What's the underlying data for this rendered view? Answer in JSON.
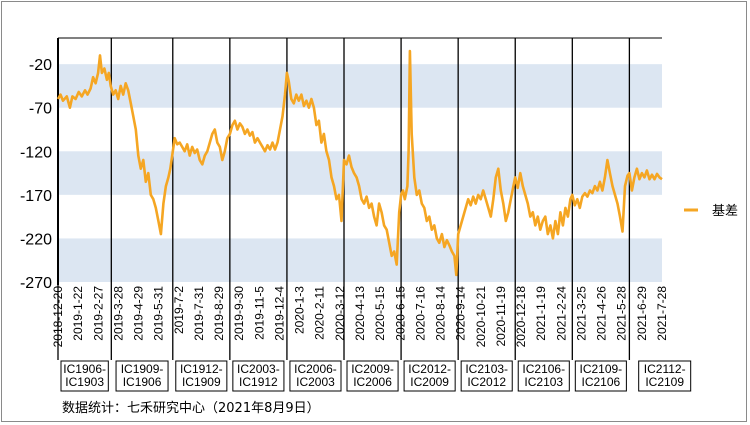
{
  "chart_data": {
    "type": "line",
    "title": "",
    "xlabel": "",
    "ylabel": "",
    "ylim": [
      -270,
      10
    ],
    "yticks": [
      -20,
      -70,
      -120,
      -170,
      -220,
      -270
    ],
    "shaded_bands": [
      [
        -70,
        -20
      ],
      [
        -170,
        -120
      ],
      [
        -270,
        -220
      ]
    ],
    "x_date_range": [
      "2018-12-20",
      "2021-8-9"
    ],
    "xticks": [
      "2018-12-20",
      "2019-1-22",
      "2019-2-27",
      "2019-3-28",
      "2019-4-29",
      "2019-5-31",
      "2019-7-2",
      "2019-7-31",
      "2019-8-29",
      "2019-9-30",
      "2019-11-5",
      "2019-12-4",
      "2020-1-3",
      "2020-2-11",
      "2020-3-12",
      "2020-4-13",
      "2020-5-15",
      "2020-6-15",
      "2020-7-16",
      "2020-8-14",
      "2020-9-14",
      "2020-10-21",
      "2020-11-19",
      "2020-12-18",
      "2021-1-19",
      "2021-2-24",
      "2021-3-25",
      "2021-4-26",
      "2021-5-28",
      "2021-6-29",
      "2021-7-28"
    ],
    "contract_dividers": [
      "2018-12-20",
      "2019-3-15",
      "2019-6-21",
      "2019-9-20",
      "2019-12-20",
      "2020-3-20",
      "2020-6-19",
      "2020-9-18",
      "2020-12-18",
      "2021-3-19",
      "2021-6-18"
    ],
    "contract_labels": [
      [
        "IC1906-",
        "IC1903"
      ],
      [
        "IC1909-",
        "IC1906"
      ],
      [
        "IC1912-",
        "IC1909"
      ],
      [
        "IC2003-",
        "IC1912"
      ],
      [
        "IC2006-",
        "IC2003"
      ],
      [
        "IC2009-",
        "IC2006"
      ],
      [
        "IC2012-",
        "IC2009"
      ],
      [
        "IC2103-",
        "IC2012"
      ],
      [
        "IC2106-",
        "IC2103"
      ],
      [
        "IC2109-",
        "IC2106"
      ],
      [
        "IC2112-",
        "IC2109"
      ]
    ],
    "legend_position": "right",
    "series": [
      {
        "name": "基差",
        "color": "#F5A623",
        "points": [
          [
            "2018-12-20",
            -60
          ],
          [
            "2018-12-24",
            -55
          ],
          [
            "2018-12-28",
            -62
          ],
          [
            "2019-1-3",
            -57
          ],
          [
            "2019-1-8",
            -70
          ],
          [
            "2019-1-12",
            -57
          ],
          [
            "2019-1-17",
            -60
          ],
          [
            "2019-1-22",
            -52
          ],
          [
            "2019-1-27",
            -57
          ],
          [
            "2019-2-1",
            -50
          ],
          [
            "2019-2-5",
            -55
          ],
          [
            "2019-2-10",
            -48
          ],
          [
            "2019-2-14",
            -35
          ],
          [
            "2019-2-18",
            -42
          ],
          [
            "2019-2-22",
            -30
          ],
          [
            "2019-2-25",
            -10
          ],
          [
            "2019-2-28",
            -30
          ],
          [
            "2019-3-4",
            -25
          ],
          [
            "2019-3-8",
            -38
          ],
          [
            "2019-3-11",
            -30
          ],
          [
            "2019-3-14",
            -45
          ],
          [
            "2019-3-18",
            -55
          ],
          [
            "2019-3-22",
            -50
          ],
          [
            "2019-3-26",
            -60
          ],
          [
            "2019-3-30",
            -45
          ],
          [
            "2019-4-3",
            -55
          ],
          [
            "2019-4-7",
            -42
          ],
          [
            "2019-4-11",
            -50
          ],
          [
            "2019-4-15",
            -65
          ],
          [
            "2019-4-19",
            -80
          ],
          [
            "2019-4-23",
            -95
          ],
          [
            "2019-4-27",
            -125
          ],
          [
            "2019-5-1",
            -140
          ],
          [
            "2019-5-5",
            -130
          ],
          [
            "2019-5-9",
            -155
          ],
          [
            "2019-5-13",
            -145
          ],
          [
            "2019-5-17",
            -170
          ],
          [
            "2019-5-21",
            -175
          ],
          [
            "2019-5-25",
            -185
          ],
          [
            "2019-5-29",
            -200
          ],
          [
            "2019-6-2",
            -215
          ],
          [
            "2019-6-6",
            -180
          ],
          [
            "2019-6-10",
            -160
          ],
          [
            "2019-6-14",
            -150
          ],
          [
            "2019-6-17",
            -140
          ],
          [
            "2019-6-20",
            -125
          ],
          [
            "2019-6-24",
            -105
          ],
          [
            "2019-6-28",
            -112
          ],
          [
            "2019-7-2",
            -110
          ],
          [
            "2019-7-6",
            -115
          ],
          [
            "2019-7-10",
            -120
          ],
          [
            "2019-7-14",
            -112
          ],
          [
            "2019-7-18",
            -125
          ],
          [
            "2019-7-22",
            -115
          ],
          [
            "2019-7-26",
            -122
          ],
          [
            "2019-7-30",
            -118
          ],
          [
            "2019-8-3",
            -130
          ],
          [
            "2019-8-7",
            -135
          ],
          [
            "2019-8-11",
            -125
          ],
          [
            "2019-8-15",
            -120
          ],
          [
            "2019-8-19",
            -110
          ],
          [
            "2019-8-23",
            -100
          ],
          [
            "2019-8-27",
            -95
          ],
          [
            "2019-8-31",
            -110
          ],
          [
            "2019-9-4",
            -115
          ],
          [
            "2019-9-8",
            -130
          ],
          [
            "2019-9-12",
            -120
          ],
          [
            "2019-9-16",
            -105
          ],
          [
            "2019-9-20",
            -100
          ],
          [
            "2019-9-24",
            -90
          ],
          [
            "2019-9-28",
            -85
          ],
          [
            "2019-10-2",
            -95
          ],
          [
            "2019-10-6",
            -88
          ],
          [
            "2019-10-10",
            -92
          ],
          [
            "2019-10-14",
            -100
          ],
          [
            "2019-10-18",
            -95
          ],
          [
            "2019-10-22",
            -102
          ],
          [
            "2019-10-26",
            -98
          ],
          [
            "2019-10-30",
            -110
          ],
          [
            "2019-11-3",
            -105
          ],
          [
            "2019-11-7",
            -110
          ],
          [
            "2019-11-11",
            -115
          ],
          [
            "2019-11-15",
            -120
          ],
          [
            "2019-11-19",
            -113
          ],
          [
            "2019-11-23",
            -118
          ],
          [
            "2019-11-27",
            -110
          ],
          [
            "2019-12-1",
            -118
          ],
          [
            "2019-12-5",
            -110
          ],
          [
            "2019-12-9",
            -95
          ],
          [
            "2019-12-13",
            -80
          ],
          [
            "2019-12-17",
            -55
          ],
          [
            "2019-12-20",
            -30
          ],
          [
            "2019-12-23",
            -40
          ],
          [
            "2019-12-27",
            -60
          ],
          [
            "2019-12-31",
            -65
          ],
          [
            "2020-1-4",
            -55
          ],
          [
            "2020-1-8",
            -62
          ],
          [
            "2020-1-12",
            -55
          ],
          [
            "2020-1-16",
            -68
          ],
          [
            "2020-1-20",
            -62
          ],
          [
            "2020-1-24",
            -70
          ],
          [
            "2020-1-28",
            -60
          ],
          [
            "2020-2-1",
            -70
          ],
          [
            "2020-2-5",
            -90
          ],
          [
            "2020-2-9",
            -85
          ],
          [
            "2020-2-13",
            -110
          ],
          [
            "2020-2-17",
            -100
          ],
          [
            "2020-2-21",
            -120
          ],
          [
            "2020-2-25",
            -130
          ],
          [
            "2020-2-29",
            -150
          ],
          [
            "2020-3-4",
            -160
          ],
          [
            "2020-3-8",
            -175
          ],
          [
            "2020-3-12",
            -170
          ],
          [
            "2020-3-16",
            -200
          ],
          [
            "2020-3-20",
            -130
          ],
          [
            "2020-3-24",
            -135
          ],
          [
            "2020-3-28",
            -125
          ],
          [
            "2020-4-1",
            -138
          ],
          [
            "2020-4-5",
            -145
          ],
          [
            "2020-4-9",
            -150
          ],
          [
            "2020-4-13",
            -160
          ],
          [
            "2020-4-17",
            -175
          ],
          [
            "2020-4-21",
            -180
          ],
          [
            "2020-4-25",
            -172
          ],
          [
            "2020-4-29",
            -185
          ],
          [
            "2020-5-3",
            -180
          ],
          [
            "2020-5-7",
            -195
          ],
          [
            "2020-5-11",
            -205
          ],
          [
            "2020-5-15",
            -180
          ],
          [
            "2020-5-19",
            -190
          ],
          [
            "2020-5-23",
            -205
          ],
          [
            "2020-5-27",
            -210
          ],
          [
            "2020-5-31",
            -225
          ],
          [
            "2020-6-4",
            -240
          ],
          [
            "2020-6-8",
            -235
          ],
          [
            "2020-6-12",
            -250
          ],
          [
            "2020-6-16",
            -190
          ],
          [
            "2020-6-19",
            -170
          ],
          [
            "2020-6-22",
            -165
          ],
          [
            "2020-6-25",
            -175
          ],
          [
            "2020-6-29",
            -160
          ],
          [
            "2020-7-1",
            -120
          ],
          [
            "2020-7-3",
            -5
          ],
          [
            "2020-7-6",
            -100
          ],
          [
            "2020-7-10",
            -150
          ],
          [
            "2020-7-14",
            -170
          ],
          [
            "2020-7-18",
            -165
          ],
          [
            "2020-7-22",
            -180
          ],
          [
            "2020-7-26",
            -185
          ],
          [
            "2020-7-30",
            -200
          ],
          [
            "2020-8-3",
            -195
          ],
          [
            "2020-8-7",
            -210
          ],
          [
            "2020-8-11",
            -205
          ],
          [
            "2020-8-15",
            -220
          ],
          [
            "2020-8-19",
            -225
          ],
          [
            "2020-8-23",
            -215
          ],
          [
            "2020-8-27",
            -230
          ],
          [
            "2020-8-31",
            -222
          ],
          [
            "2020-9-4",
            -228
          ],
          [
            "2020-9-8",
            -235
          ],
          [
            "2020-9-12",
            -240
          ],
          [
            "2020-9-15",
            -262
          ],
          [
            "2020-9-18",
            -215
          ],
          [
            "2020-9-22",
            -205
          ],
          [
            "2020-9-26",
            -195
          ],
          [
            "2020-9-30",
            -185
          ],
          [
            "2020-10-4",
            -175
          ],
          [
            "2020-10-8",
            -182
          ],
          [
            "2020-10-12",
            -172
          ],
          [
            "2020-10-16",
            -180
          ],
          [
            "2020-10-20",
            -170
          ],
          [
            "2020-10-24",
            -175
          ],
          [
            "2020-10-28",
            -165
          ],
          [
            "2020-11-1",
            -175
          ],
          [
            "2020-11-5",
            -185
          ],
          [
            "2020-11-9",
            -195
          ],
          [
            "2020-11-13",
            -175
          ],
          [
            "2020-11-17",
            -150
          ],
          [
            "2020-11-21",
            -140
          ],
          [
            "2020-11-25",
            -165
          ],
          [
            "2020-11-29",
            -180
          ],
          [
            "2020-12-3",
            -200
          ],
          [
            "2020-12-7",
            -190
          ],
          [
            "2020-12-11",
            -175
          ],
          [
            "2020-12-15",
            -160
          ],
          [
            "2020-12-18",
            -150
          ],
          [
            "2020-12-22",
            -162
          ],
          [
            "2020-12-26",
            -145
          ],
          [
            "2020-12-30",
            -160
          ],
          [
            "2021-1-3",
            -170
          ],
          [
            "2021-1-7",
            -180
          ],
          [
            "2021-1-11",
            -195
          ],
          [
            "2021-1-15",
            -190
          ],
          [
            "2021-1-19",
            -205
          ],
          [
            "2021-1-23",
            -195
          ],
          [
            "2021-1-27",
            -210
          ],
          [
            "2021-1-31",
            -200
          ],
          [
            "2021-2-4",
            -195
          ],
          [
            "2021-2-8",
            -215
          ],
          [
            "2021-2-12",
            -205
          ],
          [
            "2021-2-16",
            -220
          ],
          [
            "2021-2-20",
            -200
          ],
          [
            "2021-2-24",
            -215
          ],
          [
            "2021-2-28",
            -190
          ],
          [
            "2021-3-4",
            -205
          ],
          [
            "2021-3-8",
            -185
          ],
          [
            "2021-3-12",
            -195
          ],
          [
            "2021-3-16",
            -175
          ],
          [
            "2021-3-19",
            -170
          ],
          [
            "2021-3-23",
            -182
          ],
          [
            "2021-3-27",
            -175
          ],
          [
            "2021-3-31",
            -185
          ],
          [
            "2021-4-4",
            -172
          ],
          [
            "2021-4-8",
            -168
          ],
          [
            "2021-4-12",
            -172
          ],
          [
            "2021-4-16",
            -165
          ],
          [
            "2021-4-20",
            -168
          ],
          [
            "2021-4-24",
            -160
          ],
          [
            "2021-4-28",
            -165
          ],
          [
            "2021-5-2",
            -155
          ],
          [
            "2021-5-6",
            -165
          ],
          [
            "2021-5-10",
            -150
          ],
          [
            "2021-5-14",
            -130
          ],
          [
            "2021-5-18",
            -145
          ],
          [
            "2021-5-22",
            -160
          ],
          [
            "2021-5-26",
            -170
          ],
          [
            "2021-5-30",
            -180
          ],
          [
            "2021-6-3",
            -195
          ],
          [
            "2021-6-7",
            -212
          ],
          [
            "2021-6-11",
            -160
          ],
          [
            "2021-6-15",
            -148
          ],
          [
            "2021-6-18",
            -145
          ],
          [
            "2021-6-22",
            -165
          ],
          [
            "2021-6-26",
            -150
          ],
          [
            "2021-6-30",
            -140
          ],
          [
            "2021-7-4",
            -152
          ],
          [
            "2021-7-8",
            -145
          ],
          [
            "2021-7-12",
            -150
          ],
          [
            "2021-7-16",
            -142
          ],
          [
            "2021-7-20",
            -152
          ],
          [
            "2021-7-24",
            -147
          ],
          [
            "2021-7-28",
            -152
          ],
          [
            "2021-8-1",
            -146
          ],
          [
            "2021-8-5",
            -150
          ],
          [
            "2021-8-9",
            -152
          ]
        ]
      }
    ]
  },
  "source_note": "数据统计：七禾研究中心（2021年8月9日）"
}
